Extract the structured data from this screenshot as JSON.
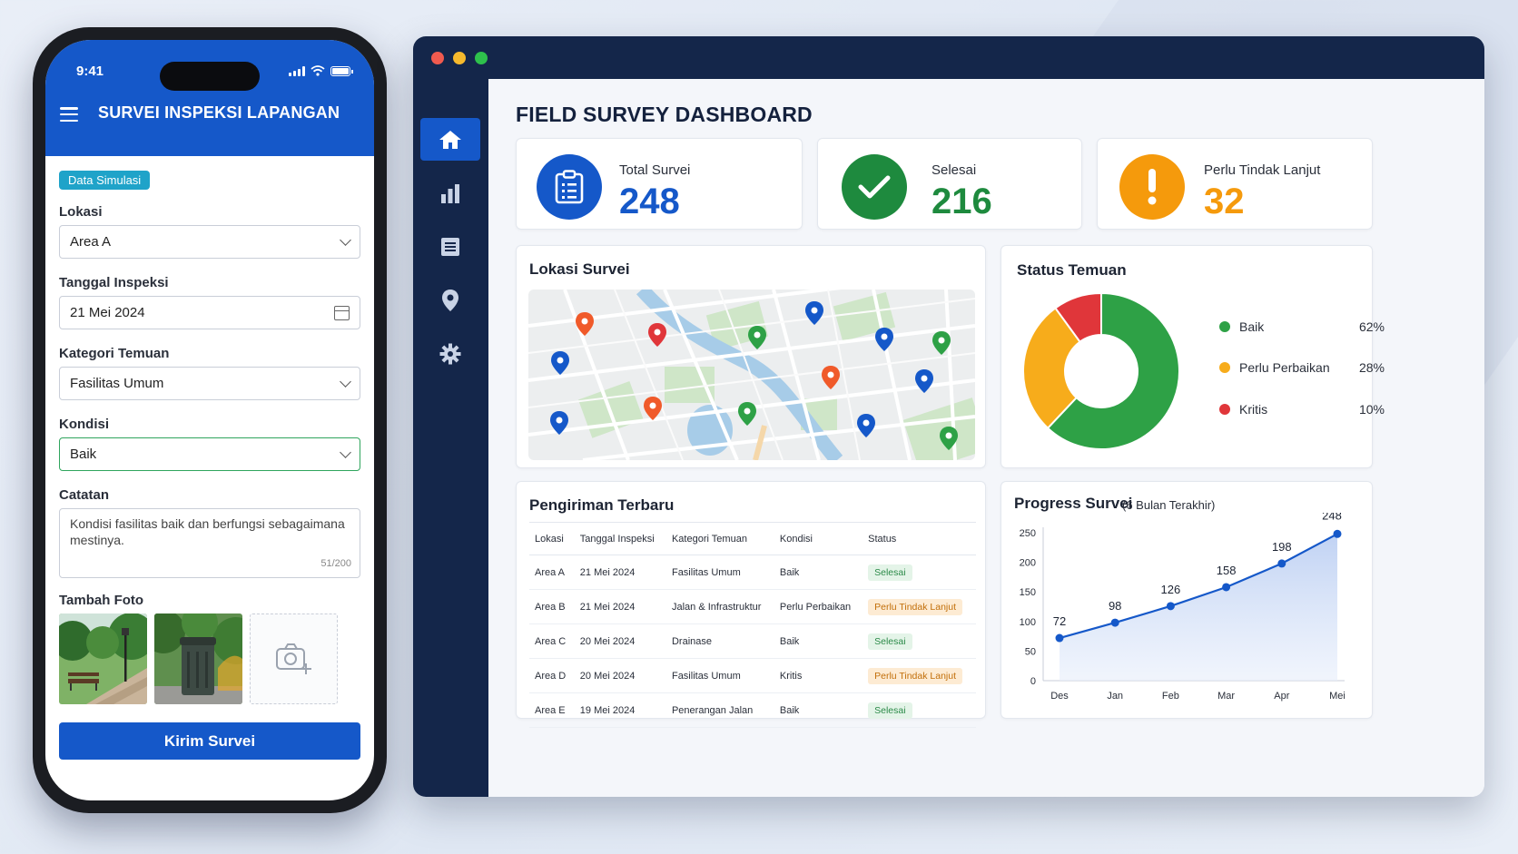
{
  "phone": {
    "time": "9:41",
    "app_title": "SURVEI INSPEKSI LAPANGAN",
    "badge": "Data Simulasi",
    "fields": {
      "lokasi": {
        "label": "Lokasi",
        "value": "Area A"
      },
      "tanggal": {
        "label": "Tanggal Inspeksi",
        "value": "21 Mei 2024"
      },
      "kategori": {
        "label": "Kategori Temuan",
        "value": "Fasilitas Umum"
      },
      "kondisi": {
        "label": "Kondisi",
        "value": "Baik"
      },
      "catatan": {
        "label": "Catatan",
        "value": "Kondisi fasilitas baik dan berfungsi sebagaimana mestinya.",
        "counter": "51/200"
      }
    },
    "photos_label": "Tambah Foto",
    "submit_label": "Kirim Survei"
  },
  "dashboard": {
    "title": "FIELD SURVEY DASHBOARD",
    "nav": [
      "home-icon",
      "bar-chart-icon",
      "document-icon",
      "map-pin-icon",
      "gear-icon"
    ],
    "stats": [
      {
        "label": "Total Survei",
        "value": "248",
        "color": "#1558c9",
        "icon": "clipboard-icon"
      },
      {
        "label": "Selesai",
        "value": "216",
        "color": "#1e8a3e",
        "icon": "check-icon"
      },
      {
        "label": "Perlu Tindak Lanjut",
        "value": "32",
        "color": "#f59a0c",
        "icon": "alert-icon"
      }
    ],
    "map_title": "Lokasi Survei",
    "status_title": "Status Temuan",
    "status": [
      {
        "label": "Baik",
        "pct": "62%",
        "value": 62,
        "color": "#2ea146"
      },
      {
        "label": "Perlu Perbaikan",
        "pct": "28%",
        "value": 28,
        "color": "#f7ac1b"
      },
      {
        "label": "Kritis",
        "pct": "10%",
        "value": 10,
        "color": "#e0363a"
      }
    ],
    "recent_title": "Pengiriman Terbaru",
    "table": {
      "headers": [
        "Lokasi",
        "Tanggal Inspeksi",
        "Kategori Temuan",
        "Kondisi",
        "Status"
      ],
      "rows": [
        [
          "Area A",
          "21 Mei 2024",
          "Fasilitas Umum",
          "Baik",
          "Selesai"
        ],
        [
          "Area B",
          "21 Mei 2024",
          "Jalan & Infrastruktur",
          "Perlu Perbaikan",
          "Perlu Tindak Lanjut"
        ],
        [
          "Area C",
          "20 Mei 2024",
          "Drainase",
          "Baik",
          "Selesai"
        ],
        [
          "Area D",
          "20 Mei 2024",
          "Fasilitas Umum",
          "Kritis",
          "Perlu Tindak Lanjut"
        ],
        [
          "Area E",
          "19 Mei 2024",
          "Penerangan Jalan",
          "Baik",
          "Selesai"
        ]
      ]
    },
    "progress_title": "Progress Survei",
    "progress_subtitle": "(6 Bulan Terakhir)"
  },
  "chart_data": {
    "type": "area",
    "categories": [
      "Des",
      "Jan",
      "Feb",
      "Mar",
      "Apr",
      "Mei"
    ],
    "values": [
      72,
      98,
      126,
      158,
      198,
      248
    ],
    "yticks": [
      0,
      50,
      100,
      150,
      200,
      250
    ],
    "ylim": [
      0,
      250
    ],
    "color": "#1558c9"
  }
}
